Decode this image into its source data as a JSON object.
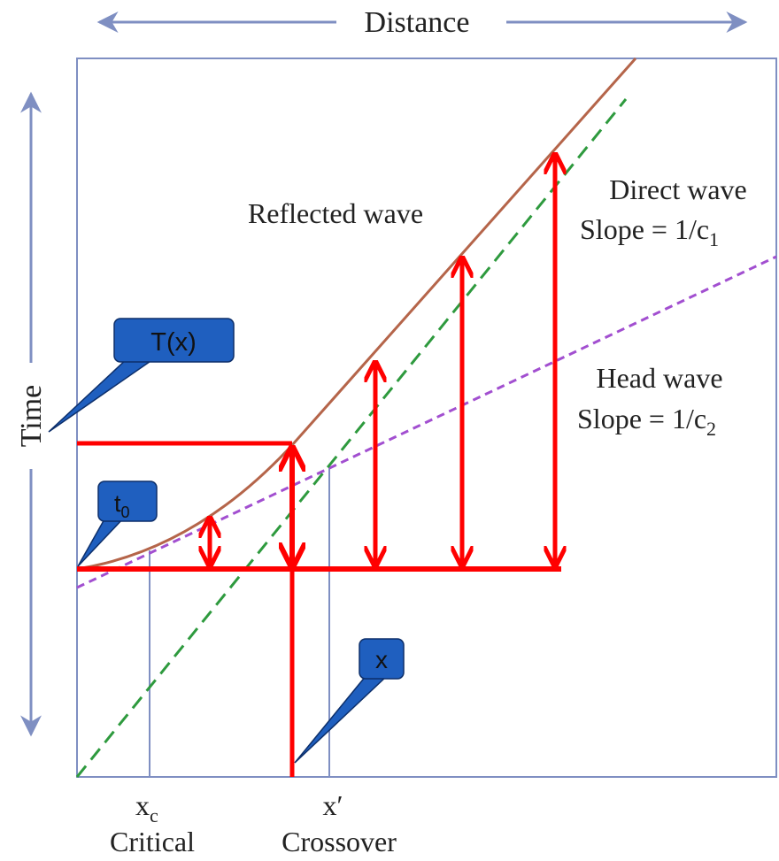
{
  "axes": {
    "x_label": "Distance",
    "y_label": "Time"
  },
  "curves": {
    "reflected_label": "Reflected wave",
    "direct_label": "Direct wave",
    "direct_slope_prefix": "Slope = 1/c",
    "direct_slope_sub": "1",
    "head_label": "Head wave",
    "head_slope_prefix": "Slope = 1/c",
    "head_slope_sub": "2"
  },
  "ticks": {
    "xc_main": "x",
    "xc_sub": "c",
    "xc_caption": "Critical",
    "xprime": "x′",
    "xprime_caption": "Crossover"
  },
  "callouts": {
    "tx": "T(x)",
    "t0_main": "t",
    "t0_sub": "0",
    "x": "x"
  },
  "colors": {
    "frame": "#7f8fc2",
    "reflected": "#b5654a",
    "direct": "#2e9a3e",
    "head": "#a24fd0",
    "annotation": "#ff0000",
    "callout_fill": "#1f5fbf",
    "callout_stroke": "#0d2f6a"
  }
}
